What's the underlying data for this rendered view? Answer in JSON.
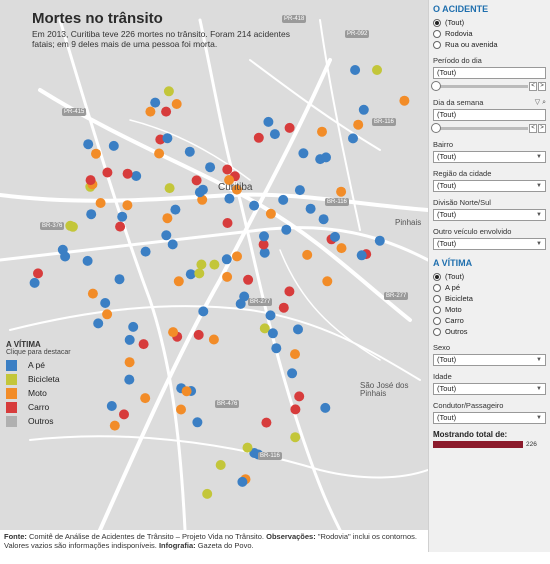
{
  "map": {
    "title": "Mortes no trânsito",
    "subtitle": "Em 2013, Curitiba teve 226 mortes no trânsito. Foram 214 acidentes fatais; em 9 deles mais de uma pessoa foi morta.",
    "places": {
      "curitiba": "Curitiba",
      "pinhais": "Pinhais",
      "sjp": "São José dos Pinhais"
    },
    "roads": {
      "pr418": "PR-418",
      "pr092": "PR-092",
      "pr415": "PR-415",
      "br116a": "BR-116",
      "br116b": "BR-116",
      "br376": "BR-376",
      "br277a": "BR-277",
      "br277b": "BR-277",
      "br476": "BR-476",
      "br116c": "BR-116"
    }
  },
  "legend": {
    "title": "A VÍTIMA",
    "hint": "Clique para destacar",
    "items": [
      {
        "label": "A pé",
        "color": "#3b7fc4"
      },
      {
        "label": "Bicicleta",
        "color": "#c3c63a"
      },
      {
        "label": "Moto",
        "color": "#f28c28"
      },
      {
        "label": "Carro",
        "color": "#d73c3c"
      },
      {
        "label": "Outros",
        "color": "#b0b0b0"
      }
    ]
  },
  "accidents": [
    {
      "t": "A pé"
    },
    {
      "t": "Moto"
    },
    {
      "t": "Carro"
    },
    {
      "t": "A pé"
    },
    {
      "t": "A pé"
    },
    {
      "t": "Moto"
    },
    {
      "t": "Bicicleta"
    },
    {
      "t": "A pé"
    },
    {
      "t": "Carro"
    },
    {
      "t": "A pé"
    },
    {
      "t": "Moto"
    },
    {
      "t": "A pé"
    },
    {
      "t": "Carro"
    },
    {
      "t": "Moto"
    },
    {
      "t": "A pé"
    },
    {
      "t": "Bicicleta"
    },
    {
      "t": "A pé"
    },
    {
      "t": "Moto"
    },
    {
      "t": "A pé"
    },
    {
      "t": "Carro"
    },
    {
      "t": "A pé"
    },
    {
      "t": "Moto"
    },
    {
      "t": "A pé"
    },
    {
      "t": "A pé"
    },
    {
      "t": "Carro"
    },
    {
      "t": "Moto"
    },
    {
      "t": "A pé"
    },
    {
      "t": "Bicicleta"
    },
    {
      "t": "A pé"
    },
    {
      "t": "Moto"
    },
    {
      "t": "Carro"
    },
    {
      "t": "A pé"
    },
    {
      "t": "A pé"
    },
    {
      "t": "Moto"
    },
    {
      "t": "A pé"
    },
    {
      "t": "Carro"
    },
    {
      "t": "A pé"
    },
    {
      "t": "Moto"
    },
    {
      "t": "A pé"
    },
    {
      "t": "Bicicleta"
    },
    {
      "t": "A pé"
    },
    {
      "t": "Carro"
    },
    {
      "t": "Moto"
    },
    {
      "t": "A pé"
    },
    {
      "t": "A pé"
    },
    {
      "t": "Moto"
    },
    {
      "t": "A pé"
    },
    {
      "t": "Carro"
    },
    {
      "t": "A pé"
    },
    {
      "t": "Moto"
    },
    {
      "t": "Bicicleta"
    },
    {
      "t": "A pé"
    },
    {
      "t": "Carro"
    },
    {
      "t": "A pé"
    },
    {
      "t": "Moto"
    },
    {
      "t": "A pé"
    },
    {
      "t": "A pé"
    },
    {
      "t": "Carro"
    },
    {
      "t": "Moto"
    },
    {
      "t": "A pé"
    },
    {
      "t": "Bicicleta"
    },
    {
      "t": "A pé"
    },
    {
      "t": "Moto"
    },
    {
      "t": "Carro"
    },
    {
      "t": "A pé"
    },
    {
      "t": "A pé"
    },
    {
      "t": "Moto"
    },
    {
      "t": "A pé"
    },
    {
      "t": "Carro"
    },
    {
      "t": "A pé"
    },
    {
      "t": "Moto"
    },
    {
      "t": "Bicicleta"
    },
    {
      "t": "A pé"
    },
    {
      "t": "Carro"
    },
    {
      "t": "A pé"
    },
    {
      "t": "Moto"
    },
    {
      "t": "A pé"
    },
    {
      "t": "A pé"
    },
    {
      "t": "Carro"
    },
    {
      "t": "Moto"
    },
    {
      "t": "A pé"
    },
    {
      "t": "Bicicleta"
    },
    {
      "t": "A pé"
    },
    {
      "t": "Moto"
    },
    {
      "t": "Carro"
    },
    {
      "t": "A pé"
    },
    {
      "t": "A pé"
    },
    {
      "t": "Moto"
    },
    {
      "t": "A pé"
    },
    {
      "t": "Carro"
    },
    {
      "t": "Bicicleta"
    },
    {
      "t": "A pé"
    },
    {
      "t": "Moto"
    },
    {
      "t": "A pé"
    },
    {
      "t": "Carro"
    },
    {
      "t": "A pé"
    },
    {
      "t": "Moto"
    },
    {
      "t": "A pé"
    },
    {
      "t": "A pé"
    },
    {
      "t": "Carro"
    },
    {
      "t": "Moto"
    },
    {
      "t": "Bicicleta"
    },
    {
      "t": "A pé"
    },
    {
      "t": "A pé"
    },
    {
      "t": "Moto"
    },
    {
      "t": "Carro"
    },
    {
      "t": "A pé"
    },
    {
      "t": "Moto"
    },
    {
      "t": "A pé"
    },
    {
      "t": "Bicicleta"
    },
    {
      "t": "Carro"
    },
    {
      "t": "A pé"
    },
    {
      "t": "Moto"
    },
    {
      "t": "A pé"
    },
    {
      "t": "A pé"
    },
    {
      "t": "Carro"
    },
    {
      "t": "Moto"
    },
    {
      "t": "A pé"
    },
    {
      "t": "Bicicleta"
    },
    {
      "t": "A pé"
    },
    {
      "t": "Carro"
    },
    {
      "t": "Moto"
    },
    {
      "t": "A pé"
    },
    {
      "t": "A pé"
    },
    {
      "t": "Moto"
    },
    {
      "t": "Carro"
    },
    {
      "t": "A pé"
    },
    {
      "t": "Bicicleta"
    },
    {
      "t": "Moto"
    },
    {
      "t": "A pé"
    },
    {
      "t": "Carro"
    },
    {
      "t": "A pé"
    },
    {
      "t": "Moto"
    },
    {
      "t": "A pé"
    },
    {
      "t": "Bicicleta"
    },
    {
      "t": "Carro"
    }
  ],
  "panel": {
    "accident": {
      "title": "O ACIDENTE",
      "options": [
        "(Tout)",
        "Rodovia",
        "Rua ou avenida"
      ],
      "selected": 0
    },
    "period": {
      "label": "Período do dia",
      "value": "(Tout)"
    },
    "weekday": {
      "label": "Dia da semana",
      "value": "(Tout)"
    },
    "slider_prev": "<",
    "slider_next": ">",
    "neighborhood": {
      "label": "Bairro",
      "value": "(Tout)"
    },
    "region": {
      "label": "Região da cidade",
      "value": "(Tout)"
    },
    "division": {
      "label": "Divisão Norte/Sul",
      "value": "(Tout)"
    },
    "other_vehicle": {
      "label": "Outro veículo envolvido",
      "value": "(Tout)"
    },
    "victim": {
      "title": "A VÍTIMA",
      "options": [
        "(Tout)",
        "A pé",
        "Bicicleta",
        "Moto",
        "Carro",
        "Outros"
      ],
      "selected": 0
    },
    "sex": {
      "label": "Sexo",
      "value": "(Tout)"
    },
    "age": {
      "label": "Idade",
      "value": "(Tout)"
    },
    "driver": {
      "label": "Condutor/Passageiro",
      "value": "(Tout)"
    },
    "total": {
      "label": "Mostrando total de:",
      "value": "226"
    }
  },
  "footer": {
    "source_label": "Fonte:",
    "source_text": " Comitê de Análise de Acidentes de Trânsito – Projeto Vida no Trânsito.",
    "notes_label": "Observações:",
    "notes_text": " \"Rodovia\" inclui os contornos. Valores vazios são informações indisponíveis.",
    "infographic_label": "Infografia:",
    "infographic_text": " Gazeta do Povo."
  }
}
